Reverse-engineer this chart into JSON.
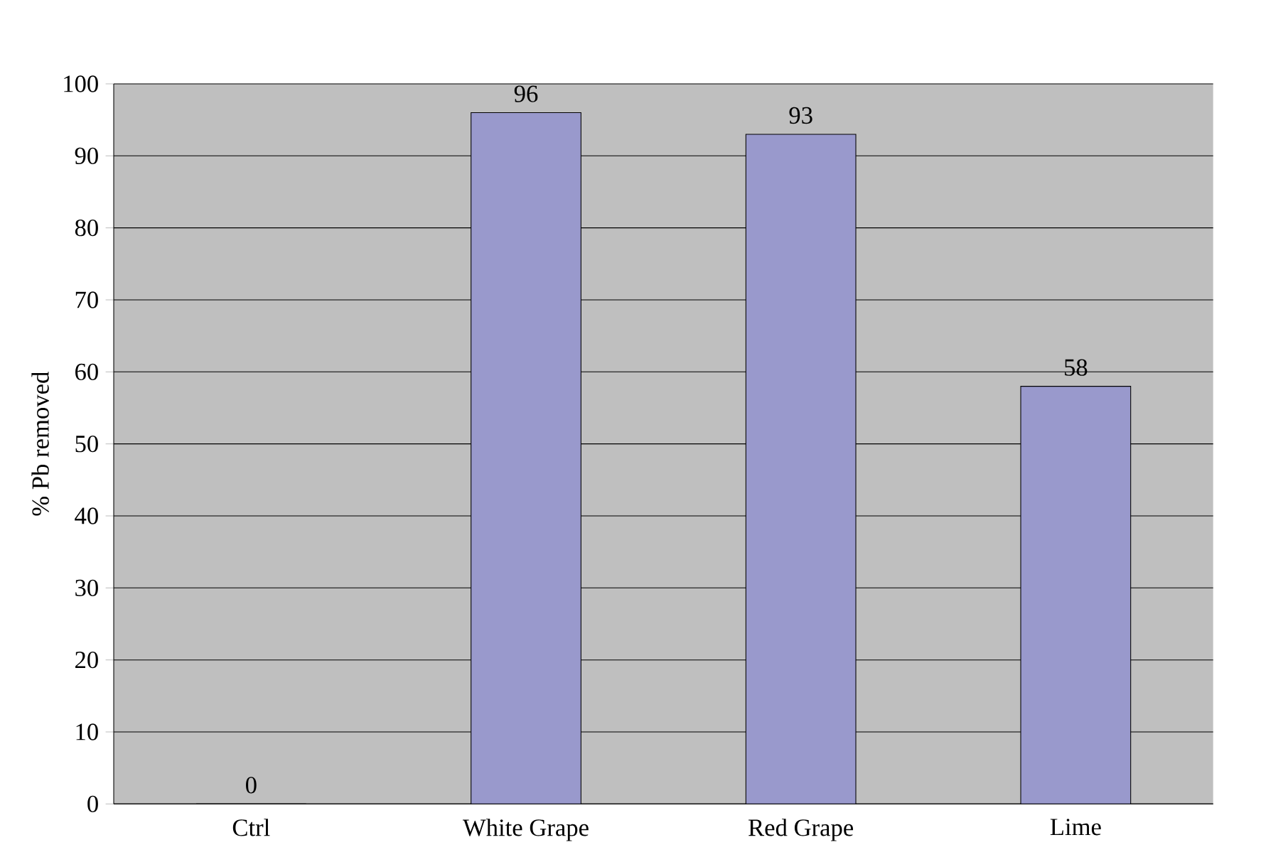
{
  "chart_data": {
    "type": "bar",
    "ylabel": "% Pb removed",
    "categories": [
      "Ctrl",
      "White Grape",
      "Red Grape",
      "Lime"
    ],
    "values": [
      0,
      96,
      93,
      58
    ],
    "color": "#9999cc",
    "ylim": [
      0,
      100
    ],
    "yticks": [
      0,
      10,
      20,
      30,
      40,
      50,
      60,
      70,
      80,
      90,
      100
    ],
    "grid": "y",
    "data_labels": true
  }
}
